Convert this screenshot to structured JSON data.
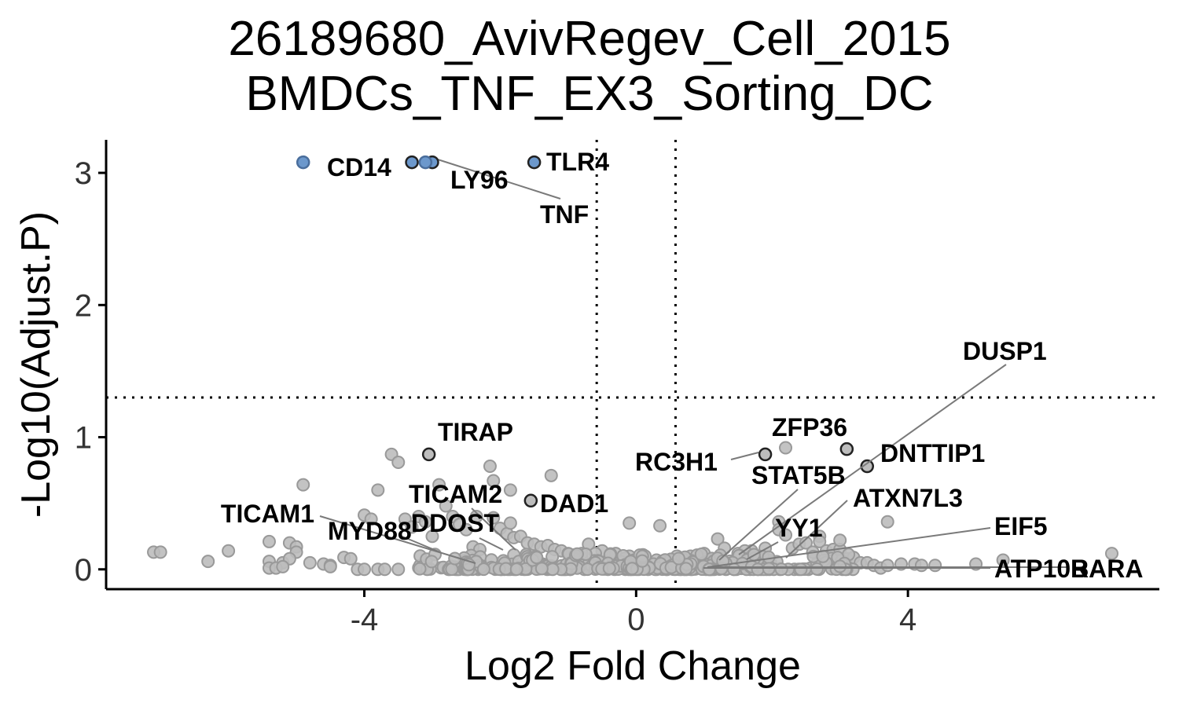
{
  "chart_data": {
    "type": "scatter",
    "title": [
      "26189680_AvivRegev_Cell_2015",
      "BMDCs_TNF_EX3_Sorting_DC"
    ],
    "xlabel": "Log2 Fold Change",
    "ylabel": "-Log10(Adjust.P)",
    "xlim": [
      -7.8,
      7.7
    ],
    "ylim": [
      -0.15,
      3.25
    ],
    "x_ticks": [
      -4,
      0,
      4
    ],
    "y_ticks": [
      0,
      1,
      2,
      3
    ],
    "x_tick_labels": [
      "-4",
      "0",
      "4"
    ],
    "y_tick_labels": [
      "0",
      "1",
      "2",
      "3"
    ],
    "thresholds": {
      "fc_cutoffs": [
        -0.58,
        0.58
      ],
      "p_cutoff": 1.3
    },
    "colors": {
      "significant": "#6c98cc",
      "labeled_outline": "#222222",
      "background": "#bdbdbd",
      "background_stroke": "#999999"
    },
    "significant_points": [
      {
        "gene": "CD14",
        "x": -4.9,
        "y": 3.08
      },
      {
        "gene": "LY96",
        "x": -3.3,
        "y": 3.08
      },
      {
        "gene": "TNF",
        "x": -3.0,
        "y": 3.08
      },
      {
        "gene": "TLR4",
        "x": -1.5,
        "y": 3.08
      }
    ],
    "labeled_points": [
      {
        "gene": "TIRAP",
        "x": -3.05,
        "y": 0.87
      },
      {
        "gene": "TICAM2",
        "x": -2.2,
        "y": 0.42
      },
      {
        "gene": "DAD1",
        "x": -1.55,
        "y": 0.52
      },
      {
        "gene": "TICAM1",
        "x": -2.35,
        "y": 0.05
      },
      {
        "gene": "MYD88",
        "x": -3.0,
        "y": 0.15
      },
      {
        "gene": "DDOST",
        "x": -1.85,
        "y": 0.14
      },
      {
        "gene": "RC3H1",
        "x": 1.9,
        "y": 0.87
      },
      {
        "gene": "ZFP36",
        "x": 3.1,
        "y": 0.91
      },
      {
        "gene": "DNTTIP1",
        "x": 3.4,
        "y": 0.78
      },
      {
        "gene": "STAT5B",
        "x": 1.2,
        "y": 0.1
      },
      {
        "gene": "DUSP1",
        "x": 1.6,
        "y": 0.12
      },
      {
        "gene": "ATXN7L3",
        "x": 2.1,
        "y": 0.08
      },
      {
        "gene": "YY1",
        "x": 1.8,
        "y": 0.11
      },
      {
        "gene": "EIF5",
        "x": 1.0,
        "y": 0.02
      },
      {
        "gene": "ATP10B",
        "x": 0.9,
        "y": 0.0
      },
      {
        "gene": "RARA",
        "x": 1.2,
        "y": 0.0
      }
    ],
    "background_points": [
      [
        -7.1,
        0.13
      ],
      [
        -7.0,
        0.13
      ],
      [
        -6.3,
        0.06
      ],
      [
        -6.0,
        0.14
      ],
      [
        -5.4,
        0.21
      ],
      [
        -5.1,
        0.2
      ],
      [
        -5.0,
        0.17
      ],
      [
        -5.0,
        0.13
      ],
      [
        -5.2,
        0.05
      ],
      [
        -5.4,
        0.06
      ],
      [
        -5.4,
        0.01
      ],
      [
        -5.3,
        0.01
      ],
      [
        -5.1,
        0.08
      ],
      [
        -5.2,
        0.02
      ],
      [
        -4.9,
        0.64
      ],
      [
        -4.8,
        0.05
      ],
      [
        -4.6,
        0.04
      ],
      [
        -4.5,
        0.03
      ],
      [
        -4.5,
        0.02
      ],
      [
        -4.3,
        0.09
      ],
      [
        -4.2,
        0.08
      ],
      [
        -4.1,
        0.0
      ],
      [
        -4.0,
        0.0
      ],
      [
        -4.0,
        0.41
      ],
      [
        -3.9,
        0.38
      ],
      [
        -3.8,
        0.0
      ],
      [
        -3.7,
        0.0
      ],
      [
        -3.5,
        0.0
      ],
      [
        -3.6,
        0.87
      ],
      [
        -3.5,
        0.81
      ],
      [
        -3.8,
        0.6
      ],
      [
        -3.4,
        0.38
      ],
      [
        -3.3,
        0.32
      ],
      [
        -3.2,
        0.4
      ],
      [
        -3.1,
        0.36
      ],
      [
        -3.0,
        0.25
      ],
      [
        -2.9,
        0.64
      ],
      [
        -2.8,
        0.48
      ],
      [
        -2.7,
        0.4
      ],
      [
        -2.6,
        0.34
      ],
      [
        -2.5,
        0.3
      ],
      [
        -2.4,
        0.17
      ],
      [
        -2.3,
        0.15
      ],
      [
        -2.1,
        0.39
      ],
      [
        -2.0,
        0.31
      ],
      [
        -1.9,
        0.27
      ],
      [
        -1.8,
        0.24
      ],
      [
        -1.7,
        0.25
      ],
      [
        -1.6,
        0.2
      ],
      [
        -1.5,
        0.19
      ],
      [
        -1.4,
        0.17
      ],
      [
        -1.3,
        0.18
      ],
      [
        -1.2,
        0.15
      ],
      [
        -1.1,
        0.14
      ],
      [
        -1.0,
        0.12
      ],
      [
        -0.9,
        0.11
      ],
      [
        -0.8,
        0.09
      ],
      [
        -0.7,
        0.19
      ],
      [
        -2.15,
        0.78
      ],
      [
        -2.1,
        0.67
      ],
      [
        -1.85,
        0.6
      ],
      [
        -1.25,
        0.71
      ],
      [
        -2.35,
        0.4
      ],
      [
        -1.85,
        0.35
      ],
      [
        -0.1,
        0.35
      ],
      [
        0.35,
        0.33
      ],
      [
        0.4,
        0.05
      ],
      [
        0.5,
        0.07
      ],
      [
        0.6,
        0.1
      ],
      [
        0.8,
        0.1
      ],
      [
        1.0,
        0.12
      ],
      [
        1.2,
        0.23
      ],
      [
        1.3,
        0.16
      ],
      [
        1.5,
        0.12
      ],
      [
        1.7,
        0.14
      ],
      [
        1.9,
        0.16
      ],
      [
        2.1,
        0.36
      ],
      [
        2.1,
        0.3
      ],
      [
        2.2,
        0.26
      ],
      [
        2.3,
        0.16
      ],
      [
        2.4,
        0.19
      ],
      [
        2.5,
        0.2
      ],
      [
        2.6,
        0.13
      ],
      [
        2.7,
        0.25
      ],
      [
        2.7,
        0.21
      ],
      [
        2.8,
        0.14
      ],
      [
        2.9,
        0.15
      ],
      [
        3.0,
        0.15
      ],
      [
        3.1,
        0.08
      ],
      [
        3.2,
        0.09
      ],
      [
        3.3,
        0.05
      ],
      [
        3.4,
        0.05
      ],
      [
        3.5,
        0.03
      ],
      [
        3.6,
        0.01
      ],
      [
        3.7,
        0.03
      ],
      [
        3.9,
        0.04
      ],
      [
        4.1,
        0.04
      ],
      [
        4.2,
        0.03
      ],
      [
        4.4,
        0.03
      ],
      [
        5.0,
        0.04
      ],
      [
        5.4,
        0.07
      ],
      [
        7.0,
        0.12
      ],
      [
        3.7,
        0.36
      ],
      [
        2.2,
        0.92
      ],
      [
        3.0,
        0.22
      ],
      [
        1.6,
        0.14
      ],
      [
        1.8,
        0.1
      ],
      [
        -0.3,
        0.12
      ],
      [
        -0.1,
        0.1
      ],
      [
        0.1,
        0.11
      ],
      [
        0.3,
        0.07
      ],
      [
        -0.5,
        0.14
      ],
      [
        -0.6,
        0.12
      ],
      [
        -0.8,
        0.12
      ]
    ]
  }
}
